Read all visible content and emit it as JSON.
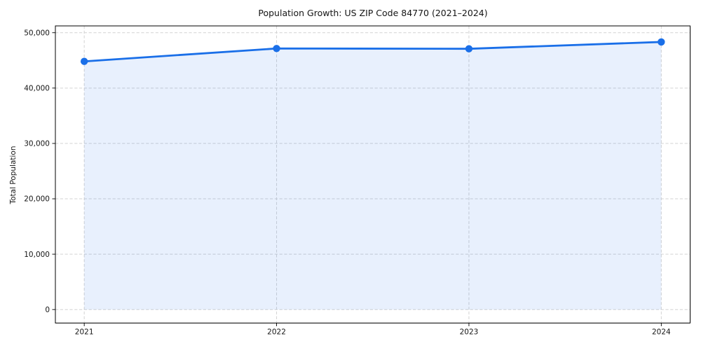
{
  "chart_data": {
    "type": "area",
    "title": "Population Growth: US ZIP Code 84770 (2021–2024)",
    "xlabel": "",
    "ylabel": "Total Population",
    "x": [
      2021,
      2022,
      2023,
      2024
    ],
    "series": [
      {
        "name": "Total Population",
        "values": [
          44820,
          47150,
          47100,
          48330
        ]
      }
    ],
    "fill_to": 0,
    "xlim": [
      2020.85,
      2024.15
    ],
    "ylim": [
      -2440,
      51230
    ],
    "xticks": {
      "values": [
        2021,
        2022,
        2023,
        2024
      ],
      "labels": [
        "2021",
        "2022",
        "2023",
        "2024"
      ]
    },
    "yticks": {
      "values": [
        0,
        10000,
        20000,
        30000,
        40000,
        50000
      ],
      "labels": [
        "0",
        "10,000",
        "20,000",
        "30,000",
        "40,000",
        "50,000"
      ]
    },
    "grid": true,
    "legend_position": "none",
    "marker": "circle",
    "line_color": "#1a6fe8",
    "fill_opacity": 0.1,
    "grid_color": "#d3d3d3",
    "spine_color": "#000000",
    "text_color": "#151515",
    "background_color": "#ffffff"
  }
}
